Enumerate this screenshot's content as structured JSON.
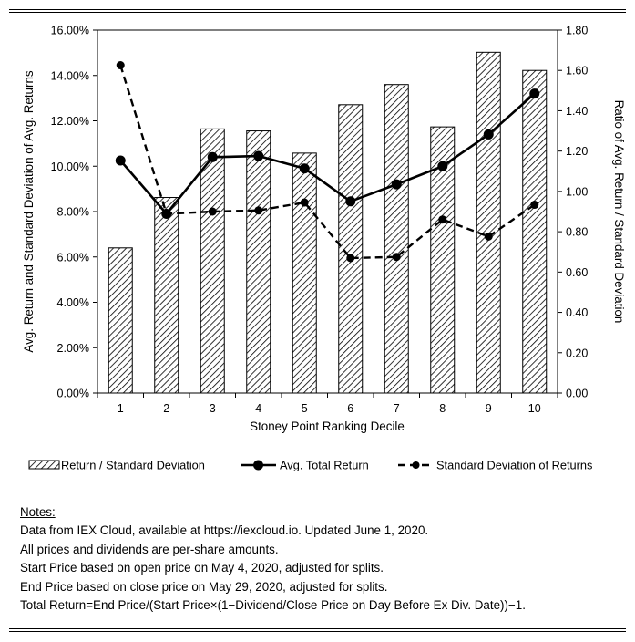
{
  "chart_data": {
    "type": "bar+line",
    "categories": [
      "1",
      "2",
      "3",
      "4",
      "5",
      "6",
      "7",
      "8",
      "9",
      "10"
    ],
    "xlabel": "Stoney Point Ranking Decile",
    "ylabel_left": "Avg. Return and Standard Deviation of Avg. Returns",
    "ylabel_right": "Ratio of Avg. Return / Standard Deviation",
    "left_axis": {
      "min": 0,
      "max": 0.16,
      "step": 0.02,
      "ticks": [
        "0.00%",
        "2.00%",
        "4.00%",
        "6.00%",
        "8.00%",
        "10.00%",
        "12.00%",
        "14.00%",
        "16.00%"
      ]
    },
    "right_axis": {
      "min": 0,
      "max": 1.8,
      "step": 0.2,
      "ticks": [
        "0.00",
        "0.20",
        "0.40",
        "0.60",
        "0.80",
        "1.00",
        "1.20",
        "1.40",
        "1.60",
        "1.80"
      ]
    },
    "series": [
      {
        "name": "Return / Standard Deviation",
        "type": "bar",
        "axis": "right",
        "pattern": "diagonal-hatch",
        "values": [
          0.72,
          0.97,
          1.31,
          1.3,
          1.19,
          1.43,
          1.53,
          1.32,
          1.69,
          1.6
        ]
      },
      {
        "name": "Avg. Total Return",
        "type": "line",
        "axis": "left",
        "style": "solid",
        "marker": "circle",
        "values": [
          0.1025,
          0.079,
          0.104,
          0.1045,
          0.099,
          0.0845,
          0.092,
          0.1,
          0.114,
          0.132
        ]
      },
      {
        "name": "Standard Deviation of Returns",
        "type": "line",
        "axis": "left",
        "style": "dashed",
        "marker": "small-dot",
        "values": [
          0.1445,
          0.079,
          0.08,
          0.0805,
          0.084,
          0.0595,
          0.06,
          0.0765,
          0.069,
          0.083
        ]
      }
    ],
    "legend": {
      "placement": "bottom"
    },
    "grid": false
  },
  "notes": {
    "heading": "Notes:",
    "lines": [
      "Data from IEX Cloud, available at https://iexcloud.io. Updated June 1, 2020.",
      "All prices and dividends are per-share amounts.",
      "Start Price based on open price on May 4, 2020, adjusted for splits.",
      "End Price based on close price on May 29, 2020, adjusted for splits.",
      "Total Return=End Price/(Start Price×(1−Dividend/Close Price on Day Before Ex Div. Date))−1."
    ]
  },
  "colors": {
    "ink": "#000000",
    "background": "#ffffff"
  }
}
